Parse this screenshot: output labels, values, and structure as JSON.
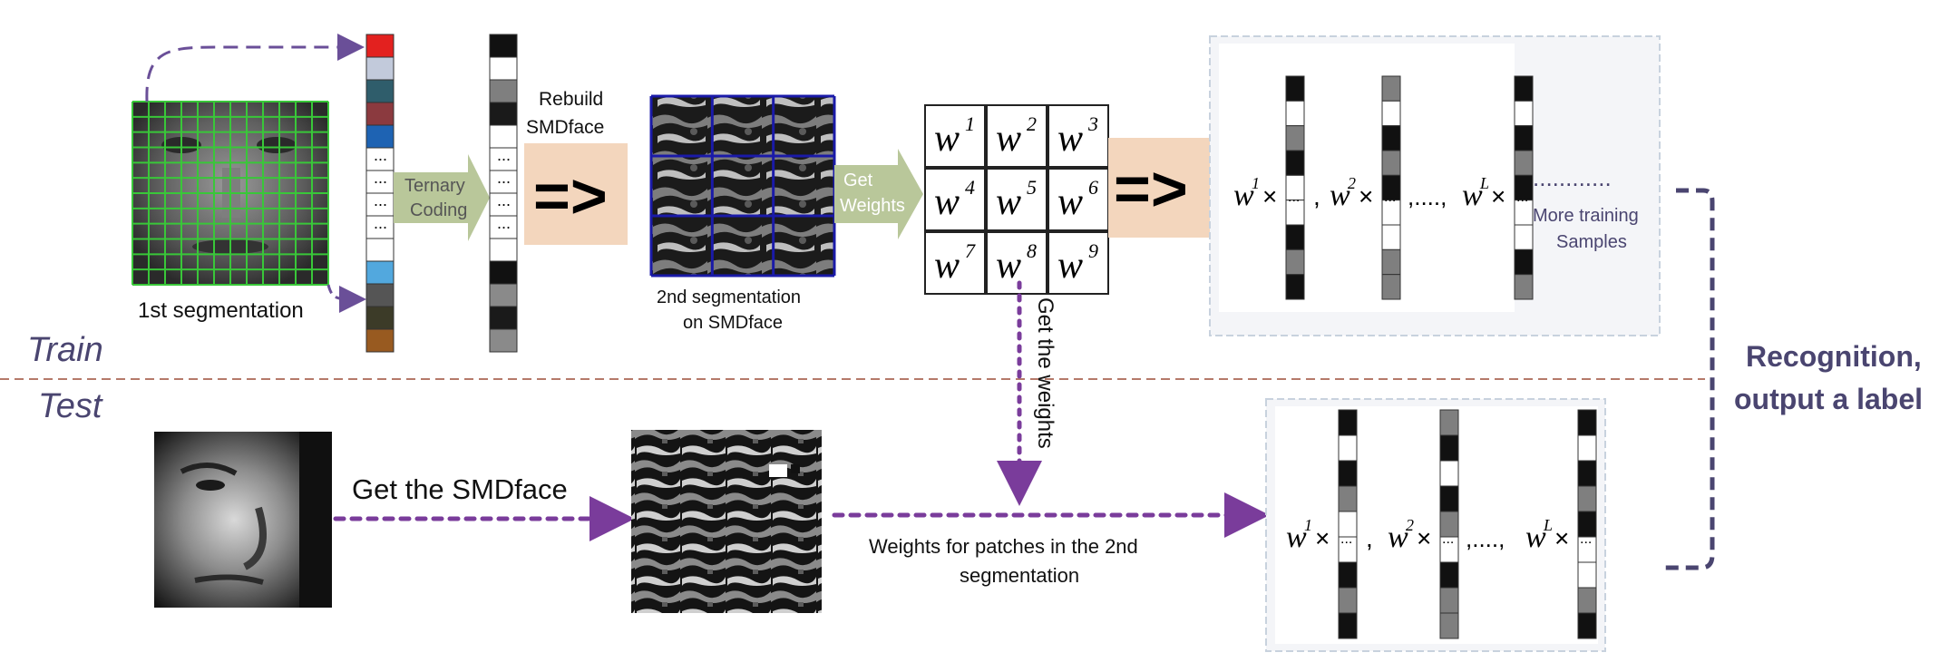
{
  "sections": {
    "train_label": "Train",
    "test_label": "Test"
  },
  "train": {
    "first_segmentation": "1st segmentation",
    "ternary_coding": [
      "Ternary",
      "Coding"
    ],
    "rebuild": [
      "Rebuild",
      "SMDface"
    ],
    "rebuild_arrow": "=>",
    "second_segmentation": [
      "2nd segmentation",
      "on  SMDface"
    ],
    "get_weights": [
      "Get",
      "Weights"
    ],
    "weight_grid": [
      {
        "base": "w",
        "sup": "1"
      },
      {
        "base": "w",
        "sup": "2"
      },
      {
        "base": "w",
        "sup": "3"
      },
      {
        "base": "w",
        "sup": "4"
      },
      {
        "base": "w",
        "sup": "5"
      },
      {
        "base": "w",
        "sup": "6"
      },
      {
        "base": "w",
        "sup": "7"
      },
      {
        "base": "w",
        "sup": "8"
      },
      {
        "base": "w",
        "sup": "9"
      }
    ],
    "weights_arrow": "=>",
    "formula": {
      "terms": [
        {
          "base": "w",
          "sup": "1"
        },
        {
          "base": "w",
          "sup": "2"
        },
        {
          "base": "w",
          "sup": "L"
        }
      ],
      "times": "×",
      "comma": ",",
      "ellipsis_sep": ",....,",
      "cell_dots": "...",
      "dots": "............"
    },
    "more_samples": [
      "More training",
      "Samples"
    ]
  },
  "link": {
    "get_the_weights": "Get the weights"
  },
  "test": {
    "get_smdface": "Get the SMDface",
    "weights_caption": [
      "Weights for patches in  the 2nd",
      "segmentation"
    ]
  },
  "output": [
    "Recognition,",
    "output a label"
  ],
  "colors": {
    "arrow_dashed": "#6a4f98",
    "arrow_dotted": "#7a3c9b",
    "green_arrow": "#b9c79a",
    "peach_box": "#f3d6bd",
    "face_grid": "#39c739",
    "seg_grid": "#1a1aa8",
    "label_color": "#4a4570"
  },
  "color_vector": [
    "#e3211f",
    "#c2cadb",
    "#2f5d6b",
    "#8b3a3f",
    "#1e63b3",
    "#ffffff",
    "#ffffff",
    "#ffffff",
    "#ffffff",
    "#ffffff",
    "#52a8de",
    "#555555",
    "#3c3b28",
    "#985a20"
  ],
  "gray_vector": [
    "#111111",
    "#ffffff",
    "#7f7f7f",
    "#1a1a1a",
    "#ffffff",
    "#ffffff",
    "#ffffff",
    "#ffffff",
    "#ffffff",
    "#ffffff",
    "#111111",
    "#8a8a8a",
    "#1a1a1a",
    "#8a8a8a"
  ]
}
